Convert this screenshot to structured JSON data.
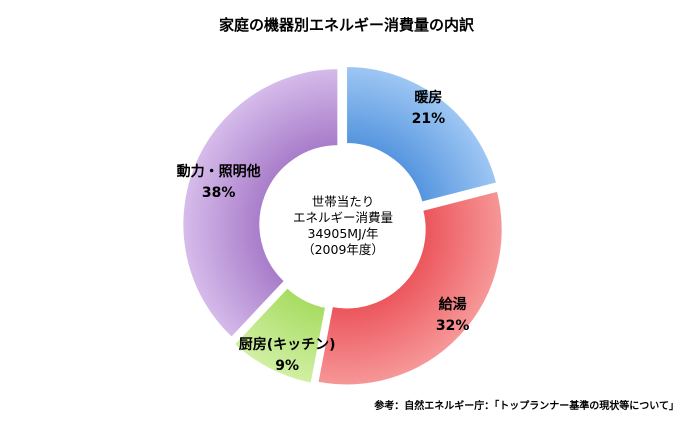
{
  "chart_data": {
    "type": "pie",
    "title": "家庭の機器別エネルギー消費量の内訳",
    "categories": [
      "暖房",
      "給湯",
      "厨房(キッチン)",
      "動力・照明他"
    ],
    "values": [
      21,
      32,
      9,
      38
    ],
    "value_labels": [
      "21%",
      "32%",
      "9%",
      "38%"
    ],
    "colors": [
      "#5a9be3",
      "#ef5a60",
      "#a9df66",
      "#a97cc8"
    ],
    "center_text": [
      "世帯当たり",
      "エネルギー消費量",
      "34905MJ/年",
      "（2009年度）"
    ],
    "source": "参考：自然エネルギー庁：「トップランナー基準の現状等について」"
  }
}
